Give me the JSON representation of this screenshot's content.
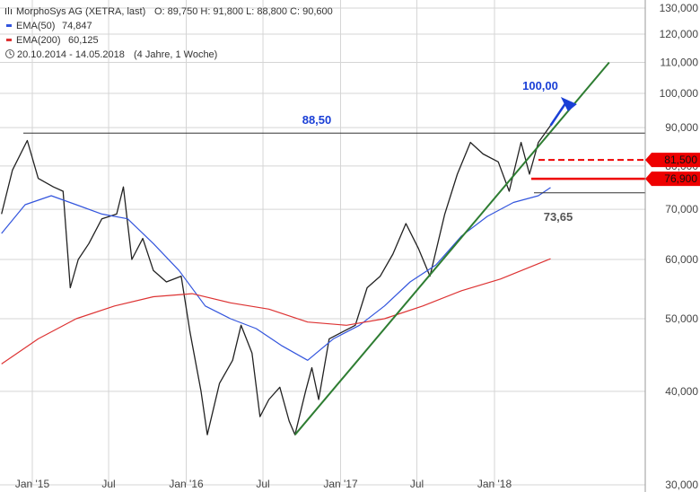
{
  "legend": {
    "instrument": "MorphoSys AG (XETRA, last)",
    "ohlc": "O: 89,750  H: 91,800  L: 88,800  C: 90,600",
    "ema50_label": "EMA(50)",
    "ema50_value": "74,847",
    "ema200_label": "EMA(200)",
    "ema200_value": "60,125",
    "range": "20.10.2014 - 14.05.2018",
    "range_span": "(4 Jahre, 1 Woche)"
  },
  "annotations": {
    "resistance": "88,50",
    "target": "100,00",
    "support": "73,65",
    "level_dashed": "81,500",
    "level_solid": "76,900"
  },
  "colors": {
    "price": "#222222",
    "ema50": "#3355dd",
    "ema200": "#dd3333",
    "trendline": "#2e7d32",
    "target": "#1a3fd6",
    "red_level": "#ee0000",
    "grid": "#d5d5d5"
  },
  "chart_data": {
    "type": "line",
    "scale": "log",
    "ylim": [
      30,
      130
    ],
    "xlim": [
      "2014-10-20",
      "2018-05-14"
    ],
    "y_ticks": [
      {
        "v": 30,
        "label": "30,000"
      },
      {
        "v": 40,
        "label": "40,000"
      },
      {
        "v": 50,
        "label": "50,000"
      },
      {
        "v": 60,
        "label": "60,000"
      },
      {
        "v": 70,
        "label": "70,000"
      },
      {
        "v": 80,
        "label": "80,000"
      },
      {
        "v": 90,
        "label": "90,000"
      },
      {
        "v": 100,
        "label": "100,000"
      },
      {
        "v": 110,
        "label": "110,000"
      },
      {
        "v": 120,
        "label": "120,000"
      },
      {
        "v": 130,
        "label": "130,000"
      }
    ],
    "x_ticks": [
      {
        "date": "2015-01-01",
        "label": "Jan '15"
      },
      {
        "date": "2015-07-01",
        "label": "Jul"
      },
      {
        "date": "2016-01-01",
        "label": "Jan '16"
      },
      {
        "date": "2016-07-01",
        "label": "Jul"
      },
      {
        "date": "2017-01-01",
        "label": "Jan '17"
      },
      {
        "date": "2017-07-01",
        "label": "Jul"
      },
      {
        "date": "2018-01-01",
        "label": "Jan '18"
      }
    ],
    "series": [
      {
        "name": "MorphoSys AG (XETRA, last)",
        "points": [
          [
            "2014-10-20",
            69.0
          ],
          [
            "2014-11-15",
            79.0
          ],
          [
            "2014-12-20",
            86.5
          ],
          [
            "2015-01-15",
            77.0
          ],
          [
            "2015-02-20",
            75.0
          ],
          [
            "2015-03-15",
            74.0
          ],
          [
            "2015-04-01",
            55.0
          ],
          [
            "2015-04-20",
            60.0
          ],
          [
            "2015-05-15",
            63.0
          ],
          [
            "2015-06-15",
            68.0
          ],
          [
            "2015-07-20",
            69.0
          ],
          [
            "2015-08-05",
            75.0
          ],
          [
            "2015-08-25",
            60.0
          ],
          [
            "2015-09-20",
            64.0
          ],
          [
            "2015-10-15",
            58.0
          ],
          [
            "2015-11-15",
            56.0
          ],
          [
            "2015-12-20",
            57.0
          ],
          [
            "2016-01-10",
            48.0
          ],
          [
            "2016-02-05",
            40.0
          ],
          [
            "2016-02-20",
            35.0
          ],
          [
            "2016-03-20",
            41.0
          ],
          [
            "2016-04-20",
            44.0
          ],
          [
            "2016-05-10",
            49.0
          ],
          [
            "2016-06-05",
            45.0
          ],
          [
            "2016-06-24",
            37.0
          ],
          [
            "2016-07-15",
            39.0
          ],
          [
            "2016-08-10",
            40.5
          ],
          [
            "2016-09-01",
            36.5
          ],
          [
            "2016-09-15",
            35.0
          ],
          [
            "2016-10-10",
            40.0
          ],
          [
            "2016-10-25",
            43.0
          ],
          [
            "2016-11-10",
            39.0
          ],
          [
            "2016-12-05",
            47.0
          ],
          [
            "2017-01-05",
            48.0
          ],
          [
            "2017-02-05",
            49.0
          ],
          [
            "2017-03-05",
            55.0
          ],
          [
            "2017-04-05",
            57.0
          ],
          [
            "2017-05-05",
            61.0
          ],
          [
            "2017-06-05",
            67.0
          ],
          [
            "2017-07-05",
            62.0
          ],
          [
            "2017-08-01",
            57.0
          ],
          [
            "2017-09-05",
            69.0
          ],
          [
            "2017-10-05",
            78.0
          ],
          [
            "2017-11-05",
            86.0
          ],
          [
            "2017-12-05",
            83.0
          ],
          [
            "2018-01-10",
            81.0
          ],
          [
            "2018-02-05",
            74.0
          ],
          [
            "2018-03-05",
            86.0
          ],
          [
            "2018-03-25",
            78.0
          ],
          [
            "2018-04-15",
            86.0
          ],
          [
            "2018-05-14",
            90.6
          ]
        ]
      },
      {
        "name": "EMA(50)",
        "points": [
          [
            "2014-10-20",
            65.0
          ],
          [
            "2014-12-15",
            71.0
          ],
          [
            "2015-02-15",
            73.0
          ],
          [
            "2015-04-15",
            71.0
          ],
          [
            "2015-06-15",
            69.0
          ],
          [
            "2015-08-15",
            68.0
          ],
          [
            "2015-10-15",
            63.0
          ],
          [
            "2015-12-15",
            58.0
          ],
          [
            "2016-02-15",
            52.0
          ],
          [
            "2016-04-15",
            50.0
          ],
          [
            "2016-06-15",
            48.5
          ],
          [
            "2016-08-15",
            46.0
          ],
          [
            "2016-10-15",
            44.0
          ],
          [
            "2016-12-15",
            47.0
          ],
          [
            "2017-02-15",
            49.0
          ],
          [
            "2017-04-15",
            52.0
          ],
          [
            "2017-06-15",
            56.0
          ],
          [
            "2017-08-15",
            59.0
          ],
          [
            "2017-10-15",
            64.5
          ],
          [
            "2017-12-15",
            68.5
          ],
          [
            "2018-02-15",
            71.5
          ],
          [
            "2018-04-15",
            73.0
          ],
          [
            "2018-05-14",
            74.847
          ]
        ]
      },
      {
        "name": "EMA(200)",
        "points": [
          [
            "2014-10-20",
            43.5
          ],
          [
            "2015-01-15",
            47.0
          ],
          [
            "2015-04-15",
            50.0
          ],
          [
            "2015-07-15",
            52.0
          ],
          [
            "2015-10-15",
            53.5
          ],
          [
            "2016-01-15",
            54.0
          ],
          [
            "2016-04-15",
            52.5
          ],
          [
            "2016-07-15",
            51.5
          ],
          [
            "2016-10-15",
            49.5
          ],
          [
            "2017-01-15",
            49.0
          ],
          [
            "2017-04-15",
            50.0
          ],
          [
            "2017-07-15",
            52.0
          ],
          [
            "2017-10-15",
            54.5
          ],
          [
            "2018-01-15",
            56.5
          ],
          [
            "2018-05-14",
            60.125
          ]
        ]
      }
    ],
    "horizontal_levels": [
      88.5,
      81.5,
      76.9,
      73.65
    ],
    "trendline": [
      [
        "2016-09-15",
        35.0
      ],
      [
        "2018-09-30",
        110.0
      ]
    ],
    "target": 100.0
  }
}
